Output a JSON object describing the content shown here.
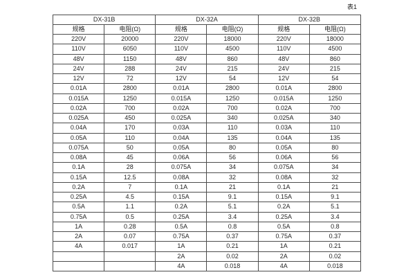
{
  "caption": "表1",
  "table": {
    "groups": [
      {
        "name": "DX-31B"
      },
      {
        "name": "DX-32A"
      },
      {
        "name": "DX-32B"
      }
    ],
    "col_headers": {
      "spec": "规格",
      "resistance": "电阻(Ω)"
    },
    "rows": [
      [
        "220V",
        "20000",
        "220V",
        "18000",
        "220V",
        "18000"
      ],
      [
        "110V",
        "6050",
        "110V",
        "4500",
        "110V",
        "4500"
      ],
      [
        "48V",
        "1150",
        "48V",
        "860",
        "48V",
        "860"
      ],
      [
        "24V",
        "288",
        "24V",
        "215",
        "24V",
        "215"
      ],
      [
        "12V",
        "72",
        "12V",
        "54",
        "12V",
        "54"
      ],
      [
        "0.01A",
        "2800",
        "0.01A",
        "2800",
        "0.01A",
        "2800"
      ],
      [
        "0.015A",
        "1250",
        "0.015A",
        "1250",
        "0.015A",
        "1250"
      ],
      [
        "0.02A",
        "700",
        "0.02A",
        "700",
        "0.02A",
        "700"
      ],
      [
        "0.025A",
        "450",
        "0.025A",
        "340",
        "0.025A",
        "340"
      ],
      [
        "0.04A",
        "170",
        "0.03A",
        "110",
        "0.03A",
        "110"
      ],
      [
        "0.05A",
        "110",
        "0.04A",
        "135",
        "0.04A",
        "135"
      ],
      [
        "0.075A",
        "50",
        "0.05A",
        "80",
        "0.05A",
        "80"
      ],
      [
        "0.08A",
        "45",
        "0.06A",
        "56",
        "0.06A",
        "56"
      ],
      [
        "0.1A",
        "28",
        "0.075A",
        "34",
        "0.075A",
        "34"
      ],
      [
        "0.15A",
        "12.5",
        "0.08A",
        "32",
        "0.08A",
        "32"
      ],
      [
        "0.2A",
        "7",
        "0.1A",
        "21",
        "0.1A",
        "21"
      ],
      [
        "0.25A",
        "4.5",
        "0.15A",
        "9.1",
        "0.15A",
        "9.1"
      ],
      [
        "0.5A",
        "1.1",
        "0.2A",
        "5.1",
        "0.2A",
        "5.1"
      ],
      [
        "0.75A",
        "0.5",
        "0.25A",
        "3.4",
        "0.25A",
        "3.4"
      ],
      [
        "1A",
        "0.28",
        "0.5A",
        "0.8",
        "0.5A",
        "0.8"
      ],
      [
        "2A",
        "0.07",
        "0.75A",
        "0.37",
        "0.75A",
        "0.37"
      ],
      [
        "4A",
        "0.017",
        "1A",
        "0.21",
        "1A",
        "0.21"
      ],
      [
        "",
        "",
        "2A",
        "0.02",
        "2A",
        "0.02"
      ],
      [
        "",
        "",
        "4A",
        "0.018",
        "4A",
        "0.018"
      ]
    ]
  }
}
